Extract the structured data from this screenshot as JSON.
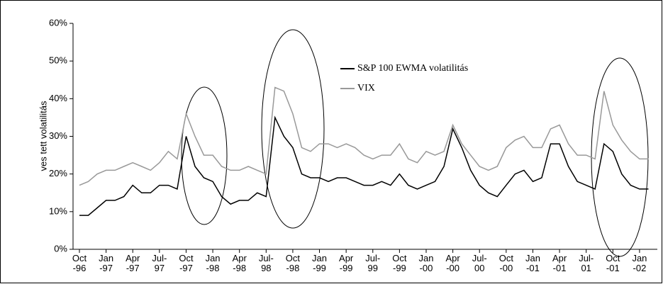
{
  "chart_data": {
    "type": "line",
    "ylabel": "ves tett volatilitás",
    "x": [
      "1996-10",
      "1996-11",
      "1996-12",
      "1997-01",
      "1997-02",
      "1997-03",
      "1997-04",
      "1997-05",
      "1997-06",
      "1997-07",
      "1997-08",
      "1997-09",
      "1997-10",
      "1997-11",
      "1997-12",
      "1998-01",
      "1998-02",
      "1998-03",
      "1998-04",
      "1998-05",
      "1998-06",
      "1998-07",
      "1998-08",
      "1998-09",
      "1998-10",
      "1998-11",
      "1998-12",
      "1999-01",
      "1999-02",
      "1999-03",
      "1999-04",
      "1999-05",
      "1999-06",
      "1999-07",
      "1999-08",
      "1999-09",
      "1999-10",
      "1999-11",
      "1999-12",
      "2000-01",
      "2000-02",
      "2000-03",
      "2000-04",
      "2000-05",
      "2000-06",
      "2000-07",
      "2000-08",
      "2000-09",
      "2000-10",
      "2000-11",
      "2000-12",
      "2001-01",
      "2001-02",
      "2001-03",
      "2001-04",
      "2001-05",
      "2001-06",
      "2001-07",
      "2001-08",
      "2001-09",
      "2001-10",
      "2001-11",
      "2001-12",
      "2002-01",
      "2002-02"
    ],
    "series": [
      {
        "name": "S&P 100 EWMA volatilitás",
        "color": "#000000",
        "values": [
          9,
          9,
          11,
          13,
          13,
          14,
          17,
          15,
          15,
          17,
          17,
          16,
          30,
          22,
          19,
          18,
          14,
          12,
          13,
          13,
          15,
          14,
          35,
          30,
          27,
          20,
          19,
          19,
          18,
          19,
          19,
          18,
          17,
          17,
          18,
          17,
          20,
          17,
          16,
          17,
          18,
          22,
          32,
          27,
          21,
          17,
          15,
          14,
          17,
          20,
          21,
          18,
          19,
          28,
          28,
          22,
          18,
          17,
          16,
          28,
          26,
          20,
          17,
          16,
          16
        ]
      },
      {
        "name": "VIX",
        "color": "#999999",
        "values": [
          17,
          18,
          20,
          21,
          21,
          22,
          23,
          22,
          21,
          23,
          26,
          24,
          36,
          30,
          25,
          25,
          22,
          21,
          21,
          22,
          21,
          20,
          43,
          42,
          36,
          27,
          26,
          28,
          28,
          27,
          28,
          27,
          25,
          24,
          25,
          25,
          28,
          24,
          23,
          26,
          25,
          26,
          33,
          28,
          25,
          22,
          21,
          22,
          27,
          29,
          30,
          27,
          27,
          32,
          33,
          28,
          25,
          25,
          24,
          42,
          33,
          29,
          26,
          24,
          24
        ]
      }
    ],
    "xlim": [
      "1996-10",
      "2002-03"
    ],
    "xticks": [
      {
        "value": "1996-10",
        "label": "Oct\n-96"
      },
      {
        "value": "1997-01",
        "label": "Jan\n-97"
      },
      {
        "value": "1997-04",
        "label": "Apr\n-97"
      },
      {
        "value": "1997-07",
        "label": "Jul-\n97"
      },
      {
        "value": "1997-10",
        "label": "Oct\n-97"
      },
      {
        "value": "1998-01",
        "label": "Jan\n-98"
      },
      {
        "value": "1998-04",
        "label": "Apr\n-98"
      },
      {
        "value": "1998-07",
        "label": "Jul-\n98"
      },
      {
        "value": "1998-10",
        "label": "Oct\n-98"
      },
      {
        "value": "1999-01",
        "label": "Jan\n-99"
      },
      {
        "value": "1999-04",
        "label": "Apr\n-99"
      },
      {
        "value": "1999-07",
        "label": "Jul-\n99"
      },
      {
        "value": "1999-10",
        "label": "Oct\n-99"
      },
      {
        "value": "2000-01",
        "label": "Jan\n-00"
      },
      {
        "value": "2000-04",
        "label": "Apr\n-00"
      },
      {
        "value": "2000-07",
        "label": "Jul-\n00"
      },
      {
        "value": "2000-10",
        "label": "Oct\n-00"
      },
      {
        "value": "2001-01",
        "label": "Jan\n-01"
      },
      {
        "value": "2001-04",
        "label": "Apr\n-01"
      },
      {
        "value": "2001-07",
        "label": "Jul-\n01"
      },
      {
        "value": "2001-10",
        "label": "Oct\n-01"
      },
      {
        "value": "2002-01",
        "label": "Jan\n-02"
      }
    ],
    "ylim": [
      0,
      60
    ],
    "yticks": [
      {
        "value": 0,
        "label": "0%"
      },
      {
        "value": 10,
        "label": "10%"
      },
      {
        "value": 20,
        "label": "20%"
      },
      {
        "value": 30,
        "label": "30%"
      },
      {
        "value": 40,
        "label": "40%"
      },
      {
        "value": 50,
        "label": "50%"
      },
      {
        "value": 60,
        "label": "60%"
      }
    ],
    "legend": "top-center"
  }
}
